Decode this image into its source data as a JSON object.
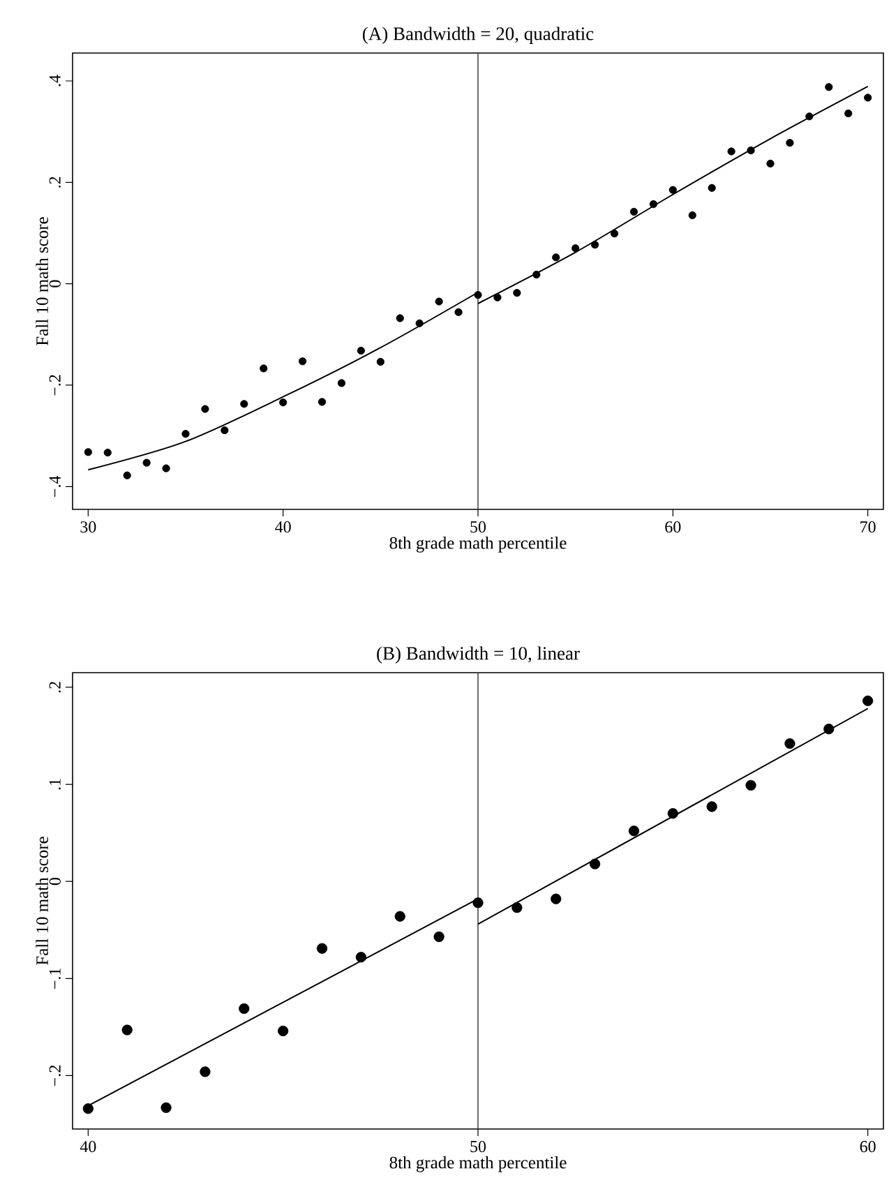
{
  "chart_data": [
    {
      "type": "scatter",
      "title": "(A) Bandwidth = 20, quadratic",
      "xlabel": "8th grade math percentile",
      "ylabel": "Fall 10 math score",
      "xlim": [
        29.2,
        70.8
      ],
      "ylim": [
        -0.445,
        0.455
      ],
      "xticks": [
        30,
        40,
        50,
        60,
        70
      ],
      "yticks": [
        {
          "value": -0.4,
          "label": "−.4"
        },
        {
          "value": -0.2,
          "label": "−.2"
        },
        {
          "value": 0,
          "label": "0"
        },
        {
          "value": 0.2,
          "label": ".2"
        },
        {
          "value": 0.4,
          "label": ".4"
        }
      ],
      "grid": false,
      "line_style": "solid",
      "ref_lines": [
        {
          "axis": "x",
          "value": 50,
          "color": "#333333"
        }
      ],
      "series": [
        {
          "marker": "circle",
          "color": "#000000",
          "x": [
            30,
            31,
            32,
            33,
            34,
            35,
            36,
            37,
            38,
            39,
            40,
            41,
            42,
            43,
            44,
            45,
            46,
            47,
            48,
            49,
            50,
            51,
            52,
            53,
            54,
            55,
            56,
            57,
            58,
            59,
            60,
            61,
            62,
            63,
            64,
            65,
            66,
            67,
            68,
            69,
            70
          ],
          "values": [
            -0.332,
            -0.333,
            -0.378,
            -0.353,
            -0.364,
            -0.296,
            -0.247,
            -0.289,
            -0.237,
            -0.167,
            -0.234,
            -0.153,
            -0.233,
            -0.196,
            -0.132,
            -0.154,
            -0.068,
            -0.078,
            -0.035,
            -0.056,
            -0.022,
            -0.027,
            -0.018,
            0.018,
            0.052,
            0.07,
            0.077,
            0.099,
            0.142,
            0.157,
            0.185,
            0.135,
            0.189,
            0.261,
            0.263,
            0.237,
            0.278,
            0.33,
            0.388,
            0.336,
            0.367
          ]
        },
        {
          "type": "line",
          "marker": "none",
          "color": "#000000",
          "x": [
            30,
            35,
            40,
            45,
            50
          ],
          "values": [
            -0.367,
            -0.311,
            -0.223,
            -0.126,
            -0.017
          ]
        },
        {
          "type": "line",
          "marker": "none",
          "color": "#000000",
          "x": [
            50,
            55,
            60,
            65,
            70
          ],
          "values": [
            -0.039,
            0.062,
            0.176,
            0.286,
            0.389
          ]
        }
      ]
    },
    {
      "type": "scatter",
      "title": "(B) Bandwidth = 10, linear",
      "xlabel": "8th grade math percentile",
      "ylabel": "Fall 10 math score",
      "xlim": [
        39.6,
        60.4
      ],
      "ylim": [
        -0.255,
        0.215
      ],
      "xticks": [
        40,
        50,
        60
      ],
      "yticks": [
        {
          "value": -0.2,
          "label": "−.2"
        },
        {
          "value": -0.1,
          "label": "−.1"
        },
        {
          "value": 0,
          "label": "0"
        },
        {
          "value": 0.1,
          "label": ".1"
        },
        {
          "value": 0.2,
          "label": ".2"
        }
      ],
      "grid": false,
      "line_style": "solid",
      "ref_lines": [
        {
          "axis": "x",
          "value": 50,
          "color": "#333333"
        }
      ],
      "series": [
        {
          "marker": "circle",
          "color": "#000000",
          "x": [
            40,
            41,
            42,
            43,
            44,
            45,
            46,
            47,
            48,
            49,
            50,
            51,
            52,
            53,
            54,
            55,
            56,
            57,
            58,
            59,
            60
          ],
          "values": [
            -0.234,
            -0.153,
            -0.233,
            -0.196,
            -0.131,
            -0.154,
            -0.069,
            -0.078,
            -0.036,
            -0.057,
            -0.022,
            -0.027,
            -0.018,
            0.018,
            0.052,
            0.07,
            0.077,
            0.099,
            0.142,
            0.157,
            0.186
          ]
        },
        {
          "type": "line",
          "marker": "none",
          "color": "#000000",
          "x": [
            40,
            50
          ],
          "values": [
            -0.231,
            -0.018
          ]
        },
        {
          "type": "line",
          "marker": "none",
          "color": "#000000",
          "x": [
            50,
            60
          ],
          "values": [
            -0.044,
            0.178
          ]
        }
      ]
    }
  ]
}
